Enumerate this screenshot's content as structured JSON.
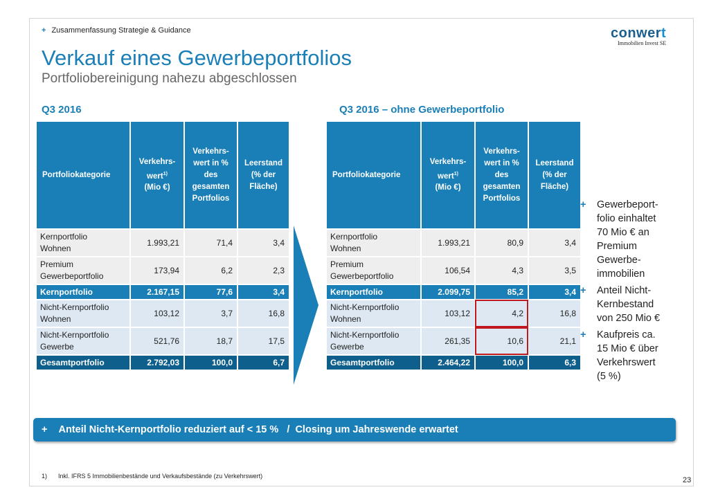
{
  "breadcrumb": {
    "icon": "plus-icon",
    "text": "Zusammenfassung Strategie & Guidance"
  },
  "logo": {
    "main": "conwer",
    "accent": "t",
    "tagline": "Immobilien Invest SE",
    "colors": {
      "main": "#1a5f8f",
      "accent": "#1a8fd0"
    }
  },
  "title": "Verkauf eines Gewerbeportfolios",
  "subtitle": "Portfoliobereinigung nahezu abgeschlossen",
  "left_table": {
    "label": "Q3 2016",
    "headers": {
      "category": "Portfoliokategorie",
      "value_a": "Verkehrs-",
      "value_b": "wert",
      "value_sup": "1)",
      "value_c": "(Mio €)",
      "pct_a": "Verkehrs-",
      "pct_b": "wert in %",
      "pct_c": "des",
      "pct_d": "gesamten",
      "pct_e": "Portfolios",
      "vac_a": "Leerstand",
      "vac_b": "(% der",
      "vac_c": "Fläche)"
    },
    "rows": [
      {
        "c1": "Kernportfolio",
        "c2": "Wohnen",
        "value": "1.993,21",
        "pct": "71,4",
        "vacancy": "3,4"
      },
      {
        "c1": "Premium",
        "c2": "Gewerbeportfolio",
        "value": "173,94",
        "pct": "6,2",
        "vacancy": "2,3"
      },
      {
        "c1": "Kernportfolio",
        "c2": "",
        "value": "2.167,15",
        "pct": "77,6",
        "vacancy": "3,4"
      },
      {
        "c1": "Nicht-Kernportfolio",
        "c2": "Wohnen",
        "value": "103,12",
        "pct": "3,7",
        "vacancy": "16,8"
      },
      {
        "c1": "Nicht-Kernportfolio",
        "c2": "Gewerbe",
        "value": "521,76",
        "pct": "18,7",
        "vacancy": "17,5"
      },
      {
        "c1": "Gesamtportfolio",
        "c2": "",
        "value": "2.792,03",
        "pct": "100,0",
        "vacancy": "6,7"
      }
    ]
  },
  "right_table": {
    "label": "Q3 2016 – ohne Gewerbeportfolio",
    "headers": {
      "category": "Portfoliokategorie",
      "value_a": "Verkehrs-",
      "value_b": "wert",
      "value_sup": "1)",
      "value_c": "(Mio €)",
      "pct_a": "Verkehrs-",
      "pct_b": "wert in %",
      "pct_c": "des",
      "pct_d": "gesamten",
      "pct_e": "Portfolios",
      "vac_a": "Leerstand",
      "vac_b": "(% der",
      "vac_c": "Fläche)"
    },
    "rows": [
      {
        "c1": "Kernportfolio",
        "c2": "Wohnen",
        "value": "1.993,21",
        "pct": "80,9",
        "vacancy": "3,4"
      },
      {
        "c1": "Premium",
        "c2": "Gewerbeportfolio",
        "value": "106,54",
        "pct": "4,3",
        "vacancy": "3,5"
      },
      {
        "c1": "Kernportfolio",
        "c2": "",
        "value": "2.099,75",
        "pct": "85,2",
        "vacancy": "3,4"
      },
      {
        "c1": "Nicht-Kernportfolio",
        "c2": "Wohnen",
        "value": "103,12",
        "pct": "4,2",
        "vacancy": "16,8"
      },
      {
        "c1": "Nicht-Kernportfolio",
        "c2": "Gewerbe",
        "value": "261,35",
        "pct": "10,6",
        "vacancy": "21,1"
      },
      {
        "c1": "Gesamtportfolio",
        "c2": "",
        "value": "2.464,22",
        "pct": "100,0",
        "vacancy": "6,3"
      }
    ]
  },
  "bullets": [
    {
      "l1": "Gewerbeport-",
      "l2": "folio einhaltet",
      "l3": "70 Mio € an",
      "l4": "Premium",
      "l5": "Gewerbe-",
      "l6": "immobilien"
    },
    {
      "l1": "Anteil Nicht-",
      "l2": "Kernbestand",
      "l3": "von 250 Mio €",
      "l4": "",
      "l5": "",
      "l6": ""
    },
    {
      "l1": "Kaufpreis ca.",
      "l2": "15 Mio € über",
      "l3": "Verkehrswert",
      "l4": "(5 %)",
      "l5": "",
      "l6": ""
    }
  ],
  "banner": {
    "plus": "+",
    "text": "Anteil Nicht-Kernportfolio reduziert auf < 15 %   /  Closing um Jahreswende erwartet"
  },
  "footnote": {
    "num": "1)",
    "text": "Inkl. IFRS 5 Immobilienbestände und Verkaufsbestände (zu Verkehrswert)"
  },
  "page_number": "23",
  "colors": {
    "primary": "#1a7fb6",
    "dark": "#0f5f8c",
    "light_row": "#eeeeee",
    "blue_row": "#dde8f2",
    "highlight": "#c0161d"
  }
}
